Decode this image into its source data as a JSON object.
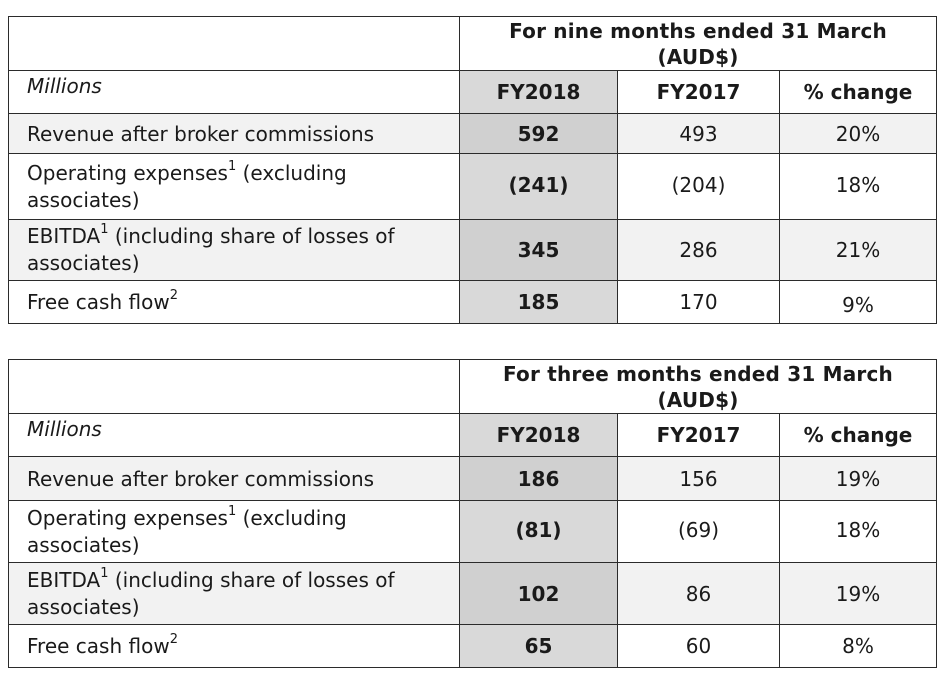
{
  "tables": [
    {
      "period_line1": "For nine months ended 31 March",
      "period_line2": "(AUD$)",
      "units": "Millions",
      "columns": [
        "FY2018",
        "FY2017",
        "% change"
      ],
      "rows": [
        {
          "label": "Revenue after broker commissions",
          "label_line2": "",
          "sup": "",
          "after_sup": "",
          "fy2018": "592",
          "fy2017": "493",
          "change": "20%"
        },
        {
          "label": "Operating expenses",
          "sup": "1",
          "after_sup": " (excluding",
          "label_line2": "associates)",
          "fy2018": "(241)",
          "fy2017": "(204)",
          "change": "18%"
        },
        {
          "label": "EBITDA",
          "sup": "1",
          "after_sup": " (including share of losses of",
          "label_line2": "associates)",
          "fy2018": "345",
          "fy2017": "286",
          "change": "21%"
        },
        {
          "label": "Free cash flow",
          "sup": "2",
          "after_sup": "",
          "label_line2": "",
          "fy2018": "185",
          "fy2017": "170",
          "change": "9%"
        }
      ]
    },
    {
      "period_line1": "For three months ended 31 March",
      "period_line2": "(AUD$)",
      "units": "Millions",
      "columns": [
        "FY2018",
        "FY2017",
        "% change"
      ],
      "rows": [
        {
          "label": "Revenue after broker commissions",
          "label_line2": "",
          "sup": "",
          "after_sup": "",
          "fy2018": "186",
          "fy2017": "156",
          "change": "19%"
        },
        {
          "label": "Operating expenses",
          "sup": "1",
          "after_sup": " (excluding",
          "label_line2": "associates)",
          "fy2018": "(81)",
          "fy2017": "(69)",
          "change": "18%"
        },
        {
          "label": "EBITDA",
          "sup": "1",
          "after_sup": " (including share of losses of",
          "label_line2": "associates)",
          "fy2018": "102",
          "fy2017": "86",
          "change": "19%"
        },
        {
          "label": "Free cash flow",
          "sup": "2",
          "after_sup": "",
          "label_line2": "",
          "fy2018": "65",
          "fy2017": "60",
          "change": "8%"
        }
      ]
    }
  ]
}
